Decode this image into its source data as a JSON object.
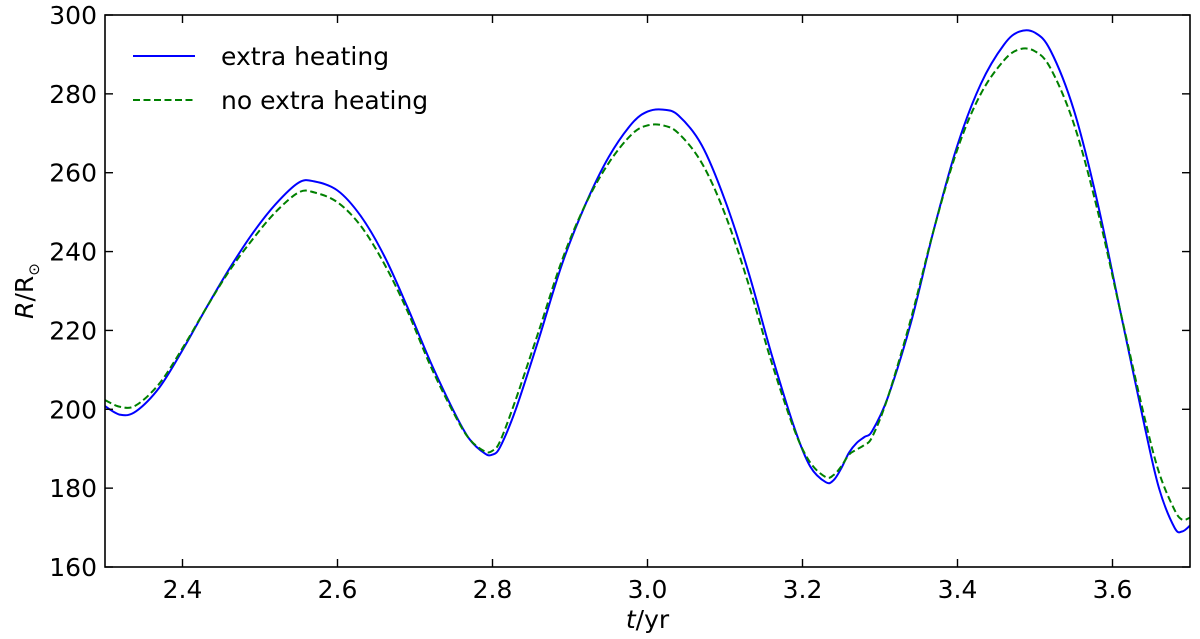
{
  "chart_data": {
    "type": "line",
    "title": "",
    "xlabel": {
      "italic": "t",
      "rest": "/yr"
    },
    "ylabel": {
      "italic": "R",
      "rest": "/R",
      "sub": "⊙"
    },
    "xlim": [
      2.3,
      3.7
    ],
    "ylim": [
      160,
      300
    ],
    "xticks": [
      2.4,
      2.6,
      2.8,
      3.0,
      3.2,
      3.4,
      3.6
    ],
    "xtick_labels": [
      "2.4",
      "2.6",
      "2.8",
      "3.0",
      "3.2",
      "3.4",
      "3.6"
    ],
    "yticks": [
      160,
      180,
      200,
      220,
      240,
      260,
      280,
      300
    ],
    "ytick_labels": [
      "160",
      "180",
      "200",
      "220",
      "240",
      "260",
      "280",
      "300"
    ],
    "grid": false,
    "legend_position": "top-left",
    "series": [
      {
        "name": "extra heating",
        "color": "#0000ff",
        "style": "solid",
        "points": [
          [
            2.3,
            200.8
          ],
          [
            2.32,
            198.6
          ],
          [
            2.34,
            199.5
          ],
          [
            2.37,
            205.5
          ],
          [
            2.4,
            215.0
          ],
          [
            2.43,
            225.5
          ],
          [
            2.46,
            235.5
          ],
          [
            2.49,
            244.5
          ],
          [
            2.52,
            252.0
          ],
          [
            2.55,
            257.5
          ],
          [
            2.57,
            257.8
          ],
          [
            2.6,
            255.5
          ],
          [
            2.63,
            249.0
          ],
          [
            2.66,
            239.0
          ],
          [
            2.69,
            226.0
          ],
          [
            2.72,
            212.0
          ],
          [
            2.75,
            199.5
          ],
          [
            2.77,
            192.5
          ],
          [
            2.79,
            188.8
          ],
          [
            2.8,
            188.5
          ],
          [
            2.81,
            190.5
          ],
          [
            2.83,
            200.0
          ],
          [
            2.86,
            218.0
          ],
          [
            2.89,
            237.0
          ],
          [
            2.92,
            252.0
          ],
          [
            2.95,
            264.0
          ],
          [
            2.98,
            272.5
          ],
          [
            3.0,
            275.5
          ],
          [
            3.02,
            276.0
          ],
          [
            3.04,
            274.5
          ],
          [
            3.07,
            267.0
          ],
          [
            3.1,
            253.0
          ],
          [
            3.13,
            235.0
          ],
          [
            3.16,
            214.0
          ],
          [
            3.19,
            195.0
          ],
          [
            3.21,
            185.5
          ],
          [
            3.23,
            181.5
          ],
          [
            3.24,
            182.0
          ],
          [
            3.25,
            185.0
          ],
          [
            3.26,
            189.0
          ],
          [
            3.27,
            191.5
          ],
          [
            3.28,
            193.0
          ],
          [
            3.29,
            194.5
          ],
          [
            3.31,
            203.0
          ],
          [
            3.34,
            222.0
          ],
          [
            3.37,
            246.0
          ],
          [
            3.4,
            267.0
          ],
          [
            3.43,
            282.5
          ],
          [
            3.46,
            292.5
          ],
          [
            3.48,
            295.8
          ],
          [
            3.5,
            295.5
          ],
          [
            3.52,
            291.0
          ],
          [
            3.55,
            276.0
          ],
          [
            3.58,
            253.0
          ],
          [
            3.61,
            225.0
          ],
          [
            3.64,
            197.0
          ],
          [
            3.66,
            180.0
          ],
          [
            3.68,
            170.0
          ],
          [
            3.69,
            169.0
          ],
          [
            3.7,
            170.5
          ]
        ]
      },
      {
        "name": "no extra heating",
        "color": "#008000",
        "style": "dashed",
        "points": [
          [
            2.3,
            202.3
          ],
          [
            2.32,
            200.6
          ],
          [
            2.34,
            201.0
          ],
          [
            2.37,
            206.5
          ],
          [
            2.4,
            215.5
          ],
          [
            2.43,
            225.5
          ],
          [
            2.46,
            235.0
          ],
          [
            2.49,
            243.0
          ],
          [
            2.52,
            250.0
          ],
          [
            2.55,
            255.0
          ],
          [
            2.57,
            255.0
          ],
          [
            2.6,
            252.5
          ],
          [
            2.63,
            246.5
          ],
          [
            2.66,
            237.0
          ],
          [
            2.69,
            225.0
          ],
          [
            2.72,
            211.0
          ],
          [
            2.75,
            199.0
          ],
          [
            2.77,
            192.5
          ],
          [
            2.79,
            189.3
          ],
          [
            2.8,
            189.5
          ],
          [
            2.81,
            192.0
          ],
          [
            2.83,
            202.5
          ],
          [
            2.86,
            220.0
          ],
          [
            2.89,
            238.0
          ],
          [
            2.92,
            252.0
          ],
          [
            2.95,
            262.5
          ],
          [
            2.98,
            269.8
          ],
          [
            3.0,
            272.0
          ],
          [
            3.02,
            272.0
          ],
          [
            3.04,
            270.0
          ],
          [
            3.07,
            262.5
          ],
          [
            3.1,
            249.5
          ],
          [
            3.13,
            232.0
          ],
          [
            3.16,
            212.0
          ],
          [
            3.19,
            194.5
          ],
          [
            3.21,
            186.5
          ],
          [
            3.23,
            182.8
          ],
          [
            3.24,
            183.3
          ],
          [
            3.25,
            185.5
          ],
          [
            3.26,
            188.5
          ],
          [
            3.27,
            189.8
          ],
          [
            3.28,
            191.0
          ],
          [
            3.29,
            193.0
          ],
          [
            3.31,
            203.0
          ],
          [
            3.34,
            223.0
          ],
          [
            3.37,
            246.0
          ],
          [
            3.4,
            266.0
          ],
          [
            3.43,
            280.0
          ],
          [
            3.46,
            288.5
          ],
          [
            3.48,
            291.3
          ],
          [
            3.5,
            290.8
          ],
          [
            3.52,
            286.5
          ],
          [
            3.55,
            272.5
          ],
          [
            3.58,
            251.0
          ],
          [
            3.61,
            225.0
          ],
          [
            3.64,
            199.0
          ],
          [
            3.66,
            184.0
          ],
          [
            3.68,
            174.5
          ],
          [
            3.69,
            172.0
          ],
          [
            3.7,
            172.5
          ]
        ]
      }
    ]
  }
}
